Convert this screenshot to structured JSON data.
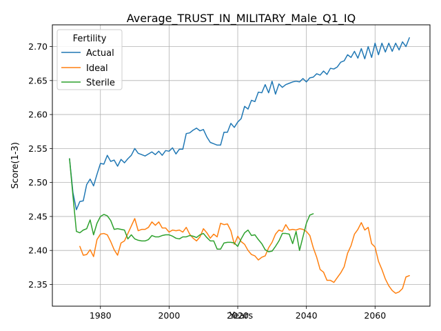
{
  "chart_data": {
    "type": "line",
    "title": "Average_TRUST_IN_MILITARY_Male_Q1_IQ",
    "xlabel": "Years",
    "ylabel": "Score(1-3)",
    "xlim": [
      1966,
      2076
    ],
    "ylim": [
      2.318,
      2.732
    ],
    "xticks": [
      1980,
      2000,
      2020,
      2040,
      2060
    ],
    "yticks": [
      2.35,
      2.4,
      2.45,
      2.5,
      2.55,
      2.6,
      2.65,
      2.7
    ],
    "ytick_labels": [
      "2.35",
      "2.40",
      "2.45",
      "2.50",
      "2.55",
      "2.60",
      "2.65",
      "2.70"
    ],
    "grid": true,
    "legend": {
      "title": "Fertility",
      "placement": "upper-left"
    },
    "series": [
      {
        "name": "Actual",
        "color": "#1f77b4",
        "x_start": 1971,
        "values": [
          2.535,
          2.485,
          2.46,
          2.472,
          2.473,
          2.497,
          2.505,
          2.495,
          2.512,
          2.528,
          2.527,
          2.54,
          2.531,
          2.533,
          2.524,
          2.534,
          2.529,
          2.535,
          2.54,
          2.55,
          2.543,
          2.541,
          2.539,
          2.542,
          2.545,
          2.541,
          2.546,
          2.54,
          2.547,
          2.546,
          2.551,
          2.542,
          2.549,
          2.549,
          2.572,
          2.573,
          2.577,
          2.58,
          2.576,
          2.578,
          2.567,
          2.559,
          2.557,
          2.555,
          2.555,
          2.574,
          2.574,
          2.587,
          2.581,
          2.589,
          2.594,
          2.612,
          2.608,
          2.621,
          2.619,
          2.633,
          2.632,
          2.644,
          2.632,
          2.649,
          2.63,
          2.645,
          2.64,
          2.644,
          2.646,
          2.648,
          2.649,
          2.648,
          2.653,
          2.648,
          2.654,
          2.655,
          2.66,
          2.658,
          2.664,
          2.659,
          2.668,
          2.667,
          2.67,
          2.677,
          2.679,
          2.688,
          2.684,
          2.693,
          2.683,
          2.697,
          2.682,
          2.7,
          2.684,
          2.705,
          2.688,
          2.705,
          2.692,
          2.705,
          2.693,
          2.705,
          2.695,
          2.707,
          2.7,
          2.713
        ]
      },
      {
        "name": "Ideal",
        "color": "#ff7f0e",
        "x_start": 1974,
        "values": [
          2.406,
          2.393,
          2.394,
          2.401,
          2.391,
          2.416,
          2.424,
          2.425,
          2.423,
          2.413,
          2.401,
          2.393,
          2.411,
          2.414,
          2.425,
          2.436,
          2.447,
          2.429,
          2.431,
          2.431,
          2.434,
          2.442,
          2.437,
          2.442,
          2.433,
          2.433,
          2.427,
          2.43,
          2.429,
          2.43,
          2.427,
          2.434,
          2.424,
          2.418,
          2.414,
          2.42,
          2.432,
          2.426,
          2.418,
          2.424,
          2.42,
          2.44,
          2.438,
          2.439,
          2.429,
          2.409,
          2.421,
          2.413,
          2.409,
          2.4,
          2.394,
          2.392,
          2.386,
          2.39,
          2.392,
          2.404,
          2.412,
          2.424,
          2.43,
          2.428,
          2.438,
          2.43,
          2.431,
          2.43,
          2.432,
          2.431,
          2.428,
          2.422,
          2.404,
          2.39,
          2.372,
          2.368,
          2.356,
          2.356,
          2.353,
          2.36,
          2.367,
          2.376,
          2.396,
          2.407,
          2.424,
          2.431,
          2.441,
          2.43,
          2.434,
          2.41,
          2.405,
          2.384,
          2.372,
          2.358,
          2.348,
          2.341,
          2.337,
          2.339,
          2.344,
          2.361,
          2.363
        ]
      },
      {
        "name": "Sterile",
        "color": "#2ca02c",
        "x_start": 1971,
        "values": [
          2.535,
          2.48,
          2.428,
          2.426,
          2.43,
          2.432,
          2.445,
          2.423,
          2.44,
          2.45,
          2.453,
          2.451,
          2.444,
          2.431,
          2.432,
          2.431,
          2.43,
          2.417,
          2.423,
          2.417,
          2.415,
          2.414,
          2.414,
          2.416,
          2.422,
          2.42,
          2.42,
          2.422,
          2.423,
          2.423,
          2.421,
          2.418,
          2.417,
          2.42,
          2.42,
          2.422,
          2.421,
          2.419,
          2.423,
          2.425,
          2.419,
          2.414,
          2.414,
          2.402,
          2.402,
          2.411,
          2.412,
          2.412,
          2.411,
          2.406,
          2.417,
          2.426,
          2.43,
          2.422,
          2.423,
          2.416,
          2.41,
          2.401,
          2.398,
          2.399,
          2.406,
          2.414,
          2.425,
          2.425,
          2.424,
          2.41,
          2.428,
          2.4,
          2.42,
          2.44,
          2.452,
          2.454
        ]
      }
    ]
  }
}
